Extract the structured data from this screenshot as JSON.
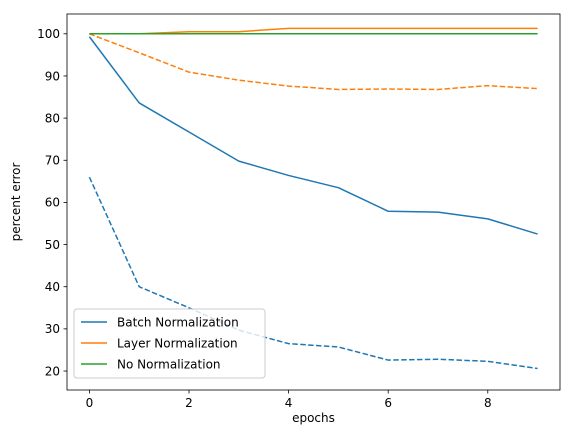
{
  "chart_data": {
    "type": "line",
    "xlabel": "epochs",
    "ylabel": "percent error",
    "xlim": [
      -0.45,
      9.45
    ],
    "ylim": [
      15.5,
      104.7
    ],
    "xticks": [
      0,
      2,
      4,
      6,
      8
    ],
    "xtick_labels": [
      "0",
      "2",
      "4",
      "6",
      "8"
    ],
    "yticks": [
      20,
      30,
      40,
      50,
      60,
      70,
      80,
      90,
      100
    ],
    "ytick_labels": [
      "20",
      "30",
      "40",
      "50",
      "60",
      "70",
      "80",
      "90",
      "100"
    ],
    "x": [
      0,
      1,
      2,
      3,
      4,
      5,
      6,
      7,
      8,
      9
    ],
    "legend_position": "lower-left",
    "grid": false,
    "series": [
      {
        "name": "",
        "color": "#1f77b4",
        "linestyle": "dashed",
        "values": [
          66.0,
          40.0,
          35.0,
          29.7,
          26.5,
          25.7,
          22.6,
          22.8,
          22.3,
          20.6
        ]
      },
      {
        "name": "",
        "color": "#ff7f0e",
        "linestyle": "dashed",
        "values": [
          100.0,
          95.5,
          90.9,
          89.0,
          87.6,
          86.8,
          86.9,
          86.8,
          87.7,
          87.0
        ]
      },
      {
        "name": "",
        "color": "#2ca02c",
        "linestyle": "dashed",
        "values": [
          100.0,
          100.0,
          100.0,
          100.0,
          100.0,
          100.0,
          100.0,
          100.0,
          100.0,
          100.0
        ]
      },
      {
        "name": "Batch Normalization",
        "color": "#1f77b4",
        "linestyle": "solid",
        "values": [
          99.3,
          83.6,
          76.7,
          69.8,
          66.4,
          63.5,
          57.9,
          57.7,
          56.1,
          52.5
        ]
      },
      {
        "name": "Layer Normalization",
        "color": "#ff7f0e",
        "linestyle": "solid",
        "values": [
          100.0,
          100.0,
          100.5,
          100.5,
          101.3,
          101.3,
          101.3,
          101.3,
          101.3,
          101.3
        ]
      },
      {
        "name": "No Normalization",
        "color": "#2ca02c",
        "linestyle": "solid",
        "values": [
          100.0,
          100.0,
          100.0,
          100.0,
          100.0,
          100.0,
          100.0,
          100.0,
          100.0,
          100.0
        ]
      }
    ]
  }
}
